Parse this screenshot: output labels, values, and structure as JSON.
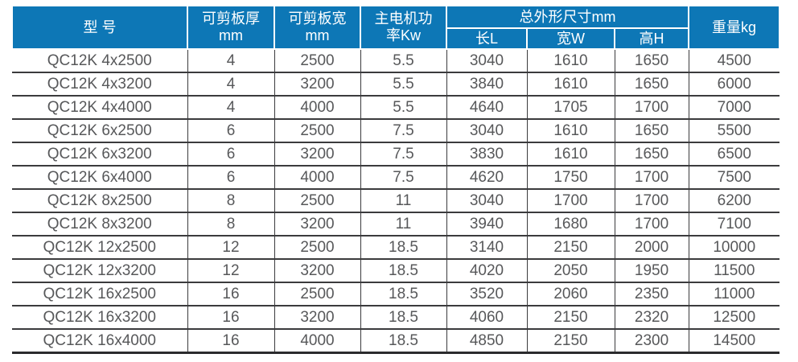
{
  "table": {
    "header": {
      "model": "型 号",
      "thickness": "可剪板厚\nmm",
      "shear_width": "可剪板宽\nmm",
      "power": "主电机功\n率Kw",
      "dimensions_group": "总外形尺寸mm",
      "length": "长L",
      "width": "宽W",
      "height": "高H",
      "weight": "重量kg"
    },
    "rows": [
      [
        "QC12K 4x2500",
        "4",
        "2500",
        "5.5",
        "3040",
        "1610",
        "1650",
        "4500"
      ],
      [
        "QC12K 4x3200",
        "4",
        "3200",
        "5.5",
        "3840",
        "1610",
        "1650",
        "6000"
      ],
      [
        "QC12K 4x4000",
        "4",
        "4000",
        "5.5",
        "4640",
        "1705",
        "1700",
        "7000"
      ],
      [
        "QC12K 6x2500",
        "6",
        "2500",
        "7.5",
        "3040",
        "1610",
        "1650",
        "5500"
      ],
      [
        "QC12K 6x3200",
        "6",
        "3200",
        "7.5",
        "3830",
        "1610",
        "1650",
        "6500"
      ],
      [
        "QC12K 6x4000",
        "6",
        "4000",
        "7.5",
        "4620",
        "1750",
        "1700",
        "7500"
      ],
      [
        "QC12K 8x2500",
        "8",
        "2500",
        "11",
        "3040",
        "1700",
        "1700",
        "6200"
      ],
      [
        "QC12K 8x3200",
        "8",
        "3200",
        "11",
        "3940",
        "1680",
        "1700",
        "7100"
      ],
      [
        "QC12K 12x2500",
        "12",
        "2500",
        "18.5",
        "3140",
        "2150",
        "2000",
        "10000"
      ],
      [
        "QC12K 12x3200",
        "12",
        "3200",
        "18.5",
        "4020",
        "2050",
        "1950",
        "11500"
      ],
      [
        "QC12K 16x2500",
        "16",
        "2500",
        "18.5",
        "3520",
        "2060",
        "2350",
        "11000"
      ],
      [
        "QC12K 16x3200",
        "16",
        "3200",
        "18.5",
        "4060",
        "2150",
        "2320",
        "12500"
      ],
      [
        "QC12K 16x4000",
        "16",
        "4000",
        "18.5",
        "4850",
        "2150",
        "2300",
        "14500"
      ]
    ],
    "column_keys": [
      "model",
      "thickness",
      "shear_width",
      "power",
      "length",
      "width",
      "height",
      "weight"
    ]
  },
  "colors": {
    "header_bg": "#0d77b6",
    "header_text": "#ffffff",
    "cell_text": "#57585a",
    "grid_line": "#3b3b3d"
  }
}
